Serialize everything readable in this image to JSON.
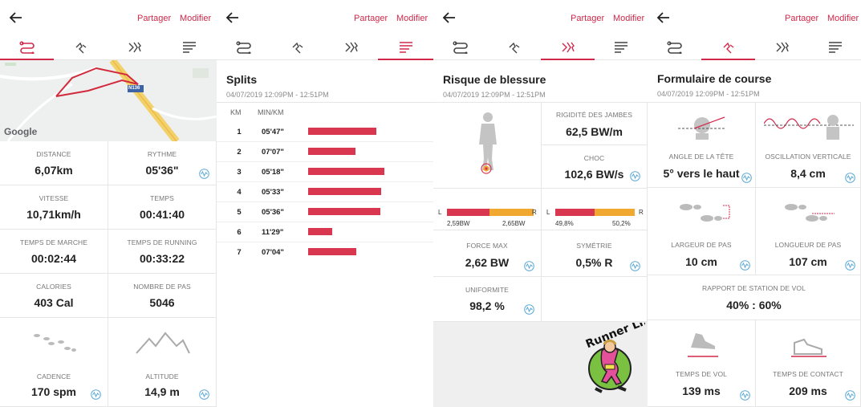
{
  "common": {
    "share": "Partager",
    "edit": "Modifier"
  },
  "p1": {
    "map_labels": {
      "brand": "Google",
      "road": "N136"
    },
    "cells": [
      {
        "label": "DISTANCE",
        "value": "6,07km"
      },
      {
        "label": "RYTHME",
        "value": "05'36\""
      },
      {
        "label": "VITESSE",
        "value": "10,71km/h"
      },
      {
        "label": "TEMPS",
        "value": "00:41:40"
      },
      {
        "label": "TEMPS DE MARCHE",
        "value": "00:02:44"
      },
      {
        "label": "TEMPS DE RUNNING",
        "value": "00:33:22"
      },
      {
        "label": "CALORIES",
        "value": "403 Cal"
      },
      {
        "label": "NOMBRE DE PAS",
        "value": "5046"
      },
      {
        "label": "CADENCE",
        "value": "170 spm"
      },
      {
        "label": "ALTITUDE",
        "value": "14,9 m"
      }
    ]
  },
  "p2": {
    "title": "Splits",
    "date": "04/07/2019  12:09PM  -  12:51PM",
    "col_km": "KM",
    "col_pace": "MIN/KM",
    "rows": [
      {
        "km": "1",
        "pace": "05'47\"",
        "seconds": 347
      },
      {
        "km": "2",
        "pace": "07'07\"",
        "seconds": 427
      },
      {
        "km": "3",
        "pace": "05'18\"",
        "seconds": 318
      },
      {
        "km": "4",
        "pace": "05'33\"",
        "seconds": 333
      },
      {
        "km": "5",
        "pace": "05'36\"",
        "seconds": 336
      },
      {
        "km": "6",
        "pace": "11'29\"",
        "seconds": 689
      },
      {
        "km": "7",
        "pace": "07'04\"",
        "seconds": 424
      }
    ],
    "bar_fractions": [
      0.76,
      0.53,
      0.85,
      0.81,
      0.8,
      0.27,
      0.54
    ]
  },
  "p3": {
    "title": "Risque de blessure",
    "date": "04/07/2019  12:09PM  -  12:51PM",
    "stiffness": {
      "label": "RIGIDITÉ DES JAMBES",
      "value": "62,5 BW/m"
    },
    "impact": {
      "label": "CHOC",
      "value": "102,6 BW/s"
    },
    "left_bar": {
      "l": "L",
      "r": "R",
      "l_val": "2,59BW",
      "r_val": "2,65BW",
      "split": 0.495
    },
    "right_bar": {
      "l": "L",
      "r": "R",
      "l_val": "49,8%",
      "r_val": "50,2%",
      "split": 0.498
    },
    "force": {
      "label": "FORCE MAX",
      "value": "2,62 BW"
    },
    "symmetry": {
      "label": "SYMÉTRIE",
      "value": "0,5% R"
    },
    "uniformity": {
      "label": "UNIFORMITE",
      "value": "98,2 %"
    },
    "logo_text": "Runner Life"
  },
  "p4": {
    "title": "Formulaire de course",
    "date": "04/07/2019  12:09PM  -  12:51PM",
    "head_angle": {
      "label": "ANGLE DE LA TÊTE",
      "value": "5° vers le haut"
    },
    "vertical_osc": {
      "label": "OSCILLATION VERTICALE",
      "value": "8,4 cm"
    },
    "step_width": {
      "label": "LARGEUR DE PAS",
      "value": "10 cm"
    },
    "step_length": {
      "label": "LONGUEUR DE PAS",
      "value": "107 cm"
    },
    "ratio": {
      "label": "RAPPORT DE STATION DE VOL",
      "value": "40% : 60%"
    },
    "flight_time": {
      "label": "TEMPS DE VOL",
      "value": "139 ms"
    },
    "contact_time": {
      "label": "TEMPS DE CONTACT",
      "value": "209 ms"
    }
  },
  "colors": {
    "accent": "#d1284a",
    "bar_red": "#d9374f",
    "bar_orange": "#f0a830"
  }
}
